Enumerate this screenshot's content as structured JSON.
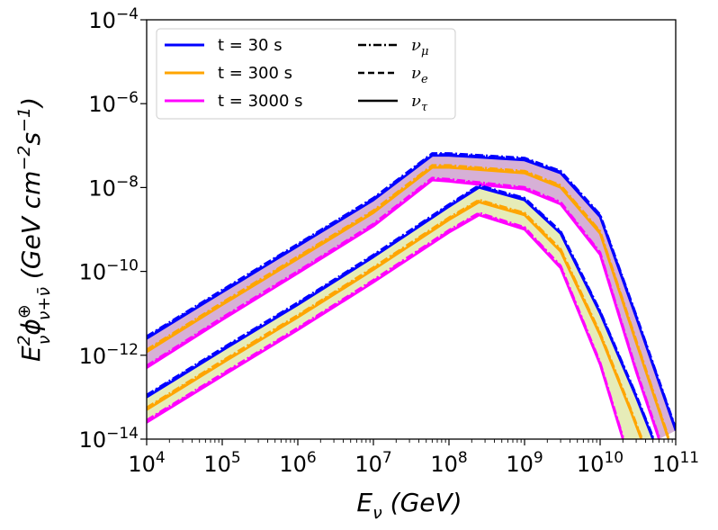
{
  "chart_data": {
    "type": "line",
    "title": "",
    "xlabel": "E_ν (GeV)",
    "ylabel": "E²_ν φ^⊕_{ν+ν̄} (GeV cm⁻² s⁻¹)",
    "xscale": "log",
    "yscale": "log",
    "xlim": [
      10000,
      100000000000
    ],
    "ylim": [
      1e-14,
      0.0001
    ],
    "x_ticks": [
      {
        "base": "10",
        "exp": "4"
      },
      {
        "base": "10",
        "exp": "5"
      },
      {
        "base": "10",
        "exp": "6"
      },
      {
        "base": "10",
        "exp": "7"
      },
      {
        "base": "10",
        "exp": "8"
      },
      {
        "base": "10",
        "exp": "9"
      },
      {
        "base": "10",
        "exp": "10"
      },
      {
        "base": "10",
        "exp": "11"
      }
    ],
    "y_ticks": [
      {
        "base": "10",
        "exp": "−14"
      },
      {
        "base": "10",
        "exp": "−12"
      },
      {
        "base": "10",
        "exp": "−10"
      },
      {
        "base": "10",
        "exp": "−8"
      },
      {
        "base": "10",
        "exp": "−6"
      },
      {
        "base": "10",
        "exp": "−4"
      }
    ],
    "legend": {
      "placement": "top-left",
      "times": [
        {
          "label": "t = 30 s",
          "color": "#0000ff"
        },
        {
          "label": "t = 300 s",
          "color": "#ffa500"
        },
        {
          "label": "t = 3000 s",
          "color": "#ff00ff"
        }
      ],
      "flavors": [
        {
          "label": "ν_μ",
          "main": "ν",
          "sub": "μ",
          "style": "dashdot"
        },
        {
          "label": "ν_e",
          "main": "ν",
          "sub": "e",
          "style": "dashed"
        },
        {
          "label": "ν_τ",
          "main": "ν",
          "sub": "τ",
          "style": "solid"
        }
      ]
    },
    "bands": [
      {
        "name": "upper band",
        "fill": "#c895c8",
        "edge_times": [
          "t = 30 s",
          "t = 3000 s"
        ]
      },
      {
        "name": "lower band",
        "fill": "#dde6a0",
        "edge_times": [
          "t = 30 s",
          "t = 3000 s"
        ]
      }
    ],
    "series": [
      {
        "name": "upper t = 30 s",
        "band": "upper",
        "color": "#0000ff",
        "x": [
          10000,
          100000,
          1000000,
          10000000,
          60000000,
          100000000,
          1000000000,
          3000000000,
          10000000000,
          30000000000,
          100000000000
        ],
        "y": [
          2.5e-12,
          3.2e-11,
          4e-10,
          5e-09,
          5.8e-08,
          5.8e-08,
          4.5e-08,
          2.2e-08,
          2e-09,
          8e-12,
          1.6e-14
        ]
      },
      {
        "name": "upper t = 300 s",
        "band": "upper",
        "color": "#ffa500",
        "x": [
          10000,
          100000,
          1000000,
          10000000,
          60000000,
          100000000,
          1000000000,
          3000000000,
          10000000000,
          30000000000,
          80000000000
        ],
        "y": [
          1.2e-12,
          1.6e-11,
          2e-10,
          2.5e-09,
          3e-08,
          3e-08,
          2.2e-08,
          1e-08,
          8e-10,
          2e-12,
          1e-14
        ]
      },
      {
        "name": "upper t = 3000 s",
        "band": "upper",
        "color": "#ff00ff",
        "x": [
          10000,
          100000,
          1000000,
          10000000,
          60000000,
          100000000,
          1000000000,
          3000000000,
          10000000000,
          30000000000,
          60000000000
        ],
        "y": [
          5e-13,
          7e-12,
          9e-11,
          1.2e-09,
          1.5e-08,
          1.4e-08,
          9e-09,
          4e-09,
          2.5e-10,
          4e-13,
          1e-14
        ]
      },
      {
        "name": "lower t = 30 s",
        "band": "lower",
        "color": "#0000ff",
        "x": [
          10000,
          100000,
          1000000,
          10000000,
          100000000,
          250000000,
          1000000000,
          3000000000,
          10000000000,
          30000000000,
          50000000000
        ],
        "y": [
          1e-13,
          1.3e-12,
          1.6e-11,
          2.2e-10,
          3.5e-09,
          1e-08,
          5e-09,
          8e-10,
          1e-11,
          1e-13,
          1e-14
        ]
      },
      {
        "name": "lower t = 300 s",
        "band": "lower",
        "color": "#ffa500",
        "x": [
          10000,
          100000,
          1000000,
          10000000,
          100000000,
          250000000,
          1000000000,
          3000000000,
          10000000000,
          25000000000,
          35000000000
        ],
        "y": [
          5e-14,
          6.5e-13,
          8e-12,
          1.1e-10,
          1.7e-09,
          4.5e-09,
          2.2e-09,
          3e-10,
          3e-12,
          5e-14,
          1e-14
        ]
      },
      {
        "name": "lower t = 3000 s",
        "band": "lower",
        "color": "#ff00ff",
        "x": [
          10000,
          100000,
          1000000,
          10000000,
          100000000,
          250000000,
          1000000000,
          3000000000,
          10000000000,
          20000000000
        ],
        "y": [
          2.5e-14,
          3.2e-13,
          4e-12,
          5.5e-11,
          8.5e-10,
          2.2e-09,
          1e-09,
          1.2e-10,
          6e-13,
          1e-14
        ]
      }
    ]
  }
}
